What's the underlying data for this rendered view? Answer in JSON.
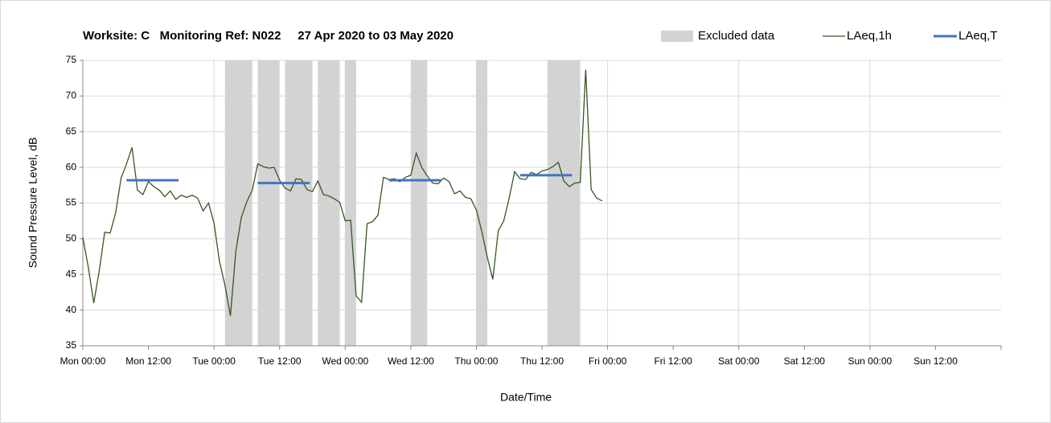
{
  "chart_data": {
    "type": "line",
    "title": "Worksite: C   Monitoring Ref: N022     27 Apr 2020 to 03 May 2020",
    "xlabel": "Date/Time",
    "ylabel": "Sound Pressure Level, dB",
    "xlim": [
      0,
      168
    ],
    "ylim": [
      35,
      75
    ],
    "yticks": [
      35,
      40,
      45,
      50,
      55,
      60,
      65,
      70,
      75
    ],
    "xticks": [
      {
        "value": 0,
        "label": "Mon 00:00"
      },
      {
        "value": 12,
        "label": "Mon 12:00"
      },
      {
        "value": 24,
        "label": "Tue 00:00"
      },
      {
        "value": 36,
        "label": "Tue 12:00"
      },
      {
        "value": 48,
        "label": "Wed 00:00"
      },
      {
        "value": 60,
        "label": "Wed 12:00"
      },
      {
        "value": 72,
        "label": "Thu 00:00"
      },
      {
        "value": 84,
        "label": "Thu 12:00"
      },
      {
        "value": 96,
        "label": "Fri 00:00"
      },
      {
        "value": 108,
        "label": "Fri 12:00"
      },
      {
        "value": 120,
        "label": "Sat 00:00"
      },
      {
        "value": 132,
        "label": "Sat 12:00"
      },
      {
        "value": 144,
        "label": "Sun 00:00"
      },
      {
        "value": 156,
        "label": "Sun 12:00"
      }
    ],
    "xgrid": [
      24,
      48,
      72,
      96,
      120,
      144
    ],
    "grid": true,
    "excluded": {
      "name": "Excluded data",
      "color": "#d3d3d3",
      "ranges": [
        [
          26,
          31
        ],
        [
          32,
          36
        ],
        [
          37,
          42
        ],
        [
          43,
          47
        ],
        [
          48,
          50
        ],
        [
          60,
          63
        ],
        [
          72,
          74
        ],
        [
          85,
          91
        ]
      ]
    },
    "series": [
      {
        "name": "LAeq,1h",
        "color": "#375623",
        "x": [
          0,
          1,
          2,
          3,
          4,
          5,
          6,
          7,
          8,
          9,
          10,
          11,
          12,
          13,
          14,
          15,
          16,
          17,
          18,
          19,
          20,
          21,
          22,
          23,
          24,
          25,
          26,
          27,
          28,
          29,
          30,
          31,
          32,
          33,
          34,
          35,
          36,
          37,
          38,
          39,
          40,
          41,
          42,
          43,
          44,
          45,
          46,
          47,
          48,
          49,
          50,
          51,
          52,
          53,
          54,
          55,
          56,
          57,
          58,
          59,
          60,
          61,
          62,
          63,
          64,
          65,
          66,
          67,
          68,
          69,
          70,
          71,
          72,
          73,
          74,
          75,
          76,
          77,
          78,
          79,
          80,
          81,
          82,
          83,
          84,
          85,
          86,
          87,
          88,
          89,
          90,
          91,
          92,
          93,
          94,
          95
        ],
        "values": [
          50.2,
          46,
          41,
          45.5,
          50.9,
          50.8,
          53.6,
          58.5,
          60.5,
          62.8,
          56.8,
          56.2,
          58,
          57.3,
          56.8,
          55.9,
          56.7,
          55.5,
          56.1,
          55.8,
          56.1,
          55.7,
          53.9,
          55,
          52.2,
          46.8,
          43.5,
          39.2,
          48.3,
          53,
          55.2,
          56.8,
          60.5,
          60.1,
          59.9,
          60,
          58.2,
          57.1,
          56.7,
          58.4,
          58.3,
          56.9,
          56.6,
          58.1,
          56.2,
          56,
          55.6,
          55.1,
          52.5,
          52.6,
          42,
          41.1,
          52.1,
          52.4,
          53.3,
          58.6,
          58.3,
          58.4,
          58,
          58.6,
          58.9,
          62,
          60,
          58.8,
          57.8,
          57.7,
          58.5,
          58,
          56.3,
          56.7,
          55.8,
          55.6,
          54,
          51,
          47.4,
          44.3,
          51.1,
          52.5,
          55.7,
          59.4,
          58.4,
          58.3,
          59.3,
          59,
          59.5,
          59.7,
          60.1,
          60.7,
          58.1,
          57.3,
          57.8,
          57.9,
          73.7,
          56.9,
          55.7,
          55.3
        ]
      },
      {
        "name": "LAeq,T",
        "color": "#4472c4",
        "segments": [
          {
            "x": [
              8,
              17.5
            ],
            "value": 58.2
          },
          {
            "x": [
              32,
              41.5
            ],
            "value": 57.8
          },
          {
            "x": [
              56,
              65.5
            ],
            "value": 58.2
          },
          {
            "x": [
              80,
              89.5
            ],
            "value": 58.9
          }
        ]
      }
    ]
  }
}
